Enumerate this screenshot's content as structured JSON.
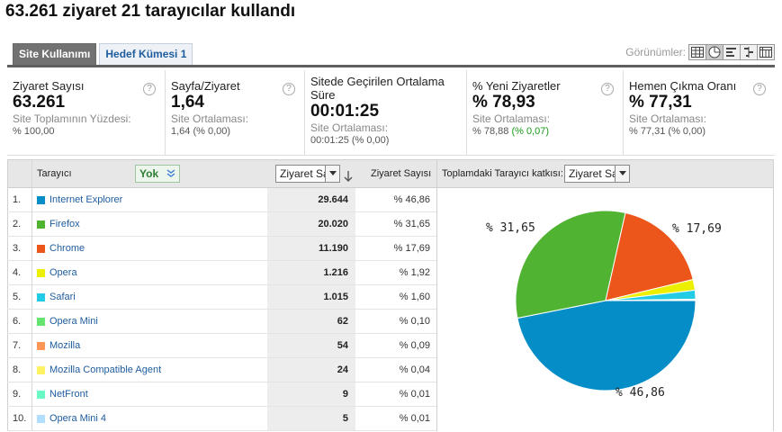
{
  "header": {
    "title": "63.261 ziyaret 21 tarayıcılar kullandı"
  },
  "tabs": [
    {
      "label": "Site Kullanımı",
      "active": true
    },
    {
      "label": "Hedef Kümesi 1",
      "active": false
    }
  ],
  "views": {
    "label": "Görünümler:",
    "icons": [
      "table-icon",
      "pie-icon",
      "bar-icon",
      "comparison-icon",
      "pivot-icon"
    ]
  },
  "metrics": [
    {
      "label": "Ziyaret Sayısı",
      "value": "63.261",
      "sub": "Site Toplamının Yüzdesi:",
      "sub2": "% 100,00",
      "delta": ""
    },
    {
      "label": "Sayfa/Ziyaret",
      "value": "1,64",
      "sub": "Site Ortalaması:",
      "sub2": "1,64 (% 0,00)",
      "delta": ""
    },
    {
      "label": "Sitede Geçirilen Ortalama Süre",
      "value": "00:01:25",
      "sub": "Site Ortalaması:",
      "sub2": "00:01:25 (% 0,00)",
      "delta": ""
    },
    {
      "label": "% Yeni Ziyaretler",
      "value": "% 78,93",
      "sub": "Site Ortalaması:",
      "sub2": "% 78,88",
      "delta": "(% 0,07)"
    },
    {
      "label": "Hemen Çıkma Oranı",
      "value": "% 77,31",
      "sub": "Site Ortalaması:",
      "sub2": "% 77,31 (% 0,00)",
      "delta": ""
    }
  ],
  "table": {
    "col_browser": "Tarayıcı",
    "secondary_dim": "Yok",
    "metric_select": "Ziyaret Sayısı",
    "col_visits": "Ziyaret Sayısı",
    "contribution_label": "Toplamdaki Tarayıcı katkısı:",
    "contribution_select": "Ziyaret Sayısı",
    "rows": [
      {
        "num": "1.",
        "name": "Internet Explorer",
        "visits": "29.644",
        "pct": "% 46,86",
        "color": "#058dc7"
      },
      {
        "num": "2.",
        "name": "Firefox",
        "visits": "20.020",
        "pct": "% 31,65",
        "color": "#50b432"
      },
      {
        "num": "3.",
        "name": "Chrome",
        "visits": "11.190",
        "pct": "% 17,69",
        "color": "#ed561b"
      },
      {
        "num": "4.",
        "name": "Opera",
        "visits": "1.216",
        "pct": "% 1,92",
        "color": "#edef00"
      },
      {
        "num": "5.",
        "name": "Safari",
        "visits": "1.015",
        "pct": "% 1,60",
        "color": "#24cbe5"
      },
      {
        "num": "6.",
        "name": "Opera Mini",
        "visits": "62",
        "pct": "% 0,10",
        "color": "#64e572"
      },
      {
        "num": "7.",
        "name": "Mozilla",
        "visits": "54",
        "pct": "% 0,09",
        "color": "#ff9655"
      },
      {
        "num": "8.",
        "name": "Mozilla Compatible Agent",
        "visits": "24",
        "pct": "% 0,04",
        "color": "#fff263"
      },
      {
        "num": "9.",
        "name": "NetFront",
        "visits": "9",
        "pct": "% 0,01",
        "color": "#6af9c4"
      },
      {
        "num": "10.",
        "name": "Opera Mini 4",
        "visits": "5",
        "pct": "% 0,01",
        "color": "#b2deff"
      }
    ]
  },
  "chart_data": {
    "type": "pie",
    "categories": [
      "Internet Explorer",
      "Firefox",
      "Chrome",
      "Opera",
      "Safari",
      "Opera Mini",
      "Mozilla",
      "Mozilla Compatible Agent",
      "NetFront",
      "Opera Mini 4"
    ],
    "values": [
      46.86,
      31.65,
      17.69,
      1.92,
      1.6,
      0.1,
      0.09,
      0.04,
      0.01,
      0.01
    ],
    "colors": [
      "#058dc7",
      "#50b432",
      "#ed561b",
      "#edef00",
      "#24cbe5",
      "#64e572",
      "#ff9655",
      "#fff263",
      "#6af9c4",
      "#b2deff"
    ],
    "labels": [
      "% 46,86",
      "% 31,65",
      "% 17,69"
    ]
  }
}
